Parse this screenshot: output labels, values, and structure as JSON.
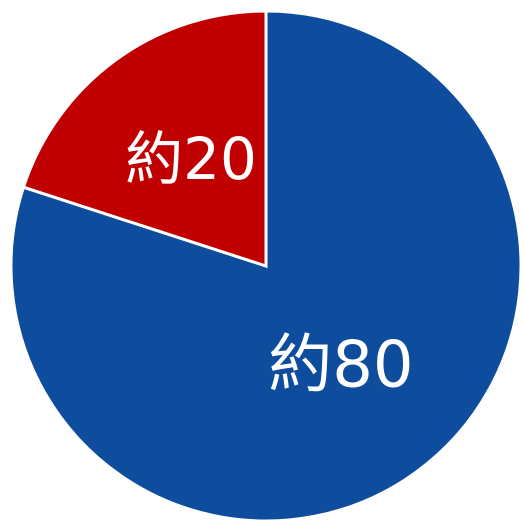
{
  "chart_data": {
    "type": "pie",
    "values": [
      80,
      20
    ],
    "value_labels": [
      "約80",
      "約20"
    ],
    "colors": [
      "#0e4c9e",
      "#c00000"
    ]
  }
}
